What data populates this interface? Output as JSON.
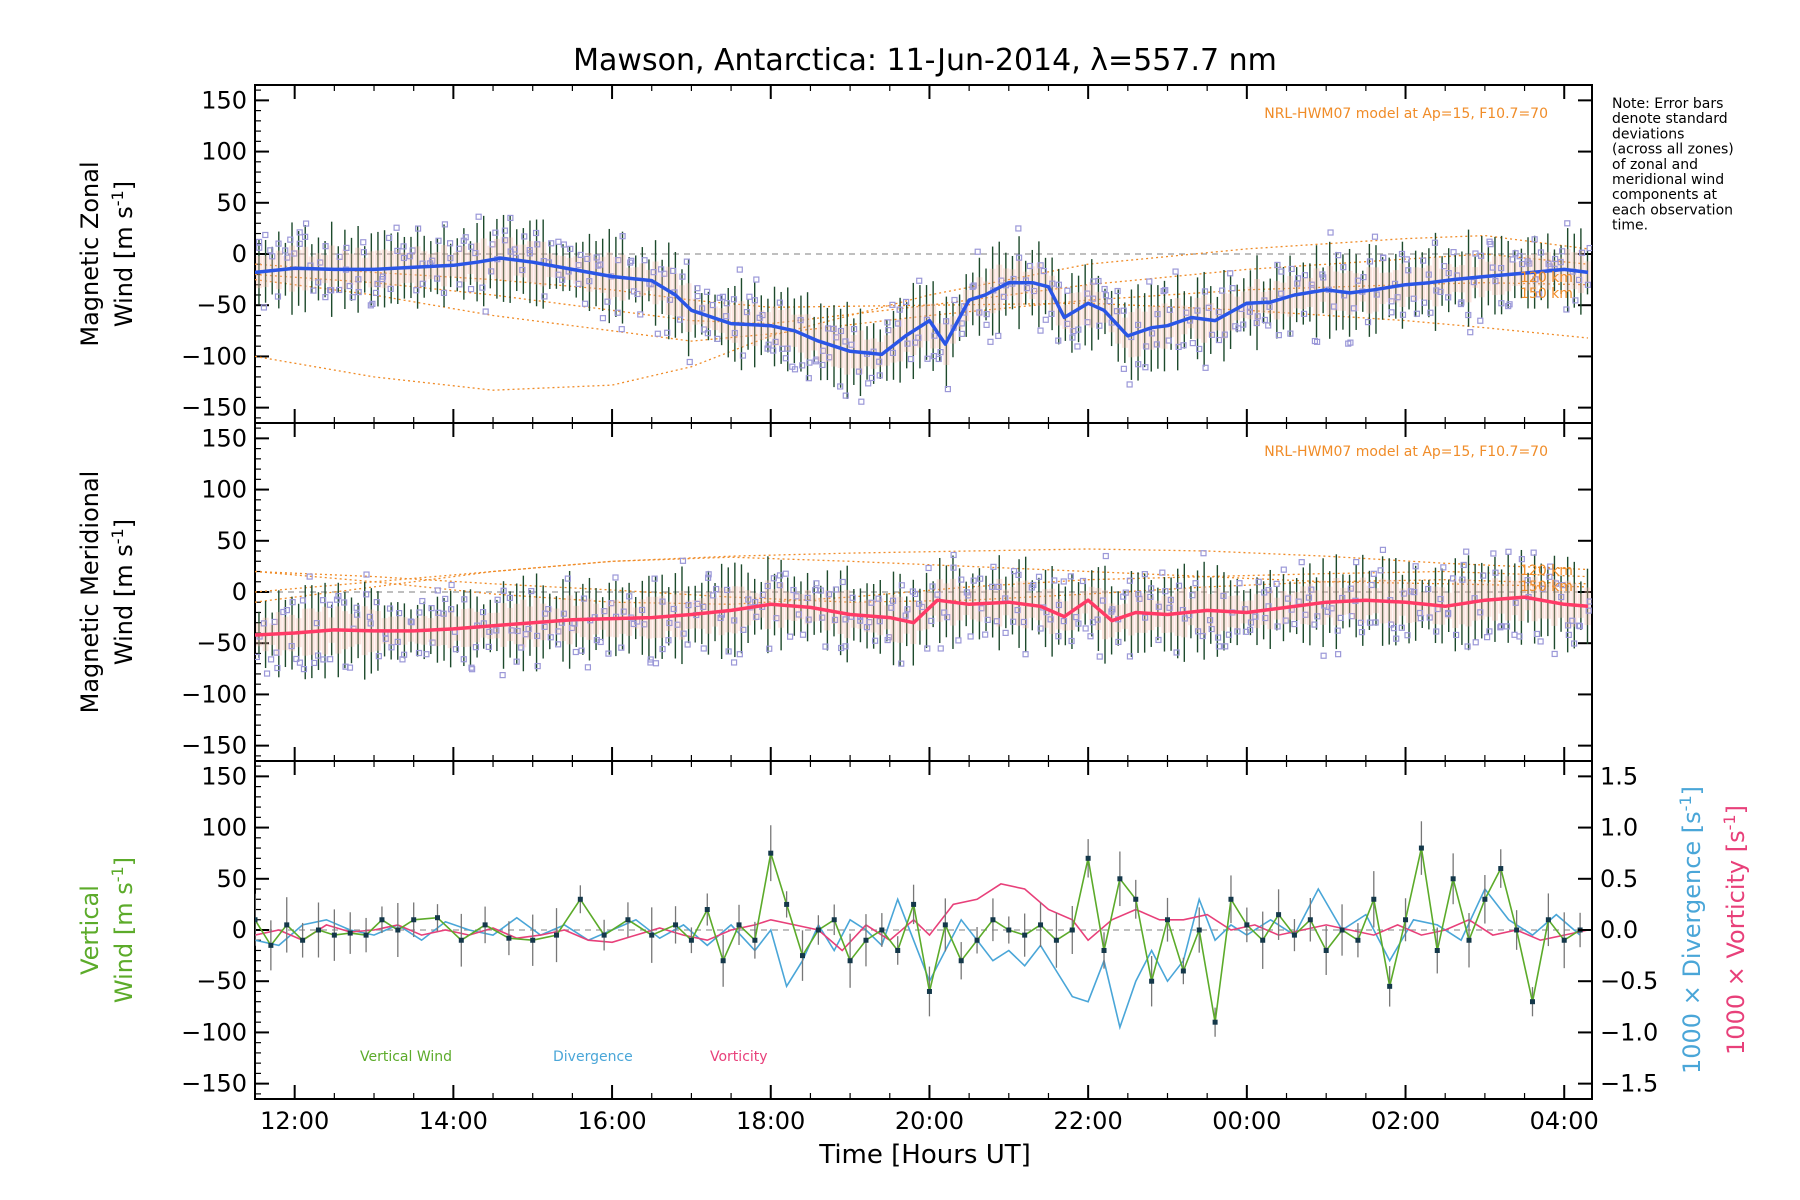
{
  "title": "Mawson, Antarctica: 11-Jun-2014, λ=557.7 nm",
  "note_lines": [
    "Note: Error bars",
    "denote standard",
    "deviations",
    "(across all zones)",
    "of zonal and",
    "meridional wind",
    "components at",
    "each observation",
    "time."
  ],
  "colors": {
    "zonal": "#2a55e6",
    "meridional": "#ff3a66",
    "vertical": "#5cab2a",
    "divergence": "#4aa6d8",
    "vorticity": "#e8407a",
    "model": "#f08c28",
    "scatter": "#9b98d8",
    "error_bar": "#1d4a2c",
    "zero_line": "#999999"
  },
  "chart_data": [
    {
      "type": "line",
      "panel": "zonal",
      "ylabel_line1": "Magnetic Zonal",
      "ylabel_line2": "Wind [m s",
      "ylabel_sup": "-1",
      "ylabel_close": "]",
      "ylim": [
        -165,
        165
      ],
      "yticks": [
        -150,
        -100,
        -50,
        0,
        50,
        100,
        150
      ],
      "model_label": "NRL-HWM07 model at Ap=15, F10.7=70",
      "model_curve_labels": [
        "120 km",
        "150 km"
      ],
      "series": [
        {
          "x": [
            11.5,
            12.0,
            12.5,
            13.0,
            13.5,
            14.0,
            14.3,
            14.6,
            15.0,
            15.5,
            16.0,
            16.5,
            16.8,
            17.0,
            17.5,
            18.0,
            18.3,
            18.6,
            19.0,
            19.4,
            19.7,
            20.0,
            20.2,
            20.5,
            20.7,
            21.0,
            21.3,
            21.5,
            21.7,
            22.0,
            22.2,
            22.5,
            22.8,
            23.0,
            23.3,
            23.6,
            24.0,
            24.3,
            24.6,
            25.0,
            25.3,
            25.6,
            26.0,
            26.3,
            26.6,
            27.0,
            27.3,
            27.6,
            28.0,
            28.3
          ],
          "y": [
            -18,
            -14,
            -15,
            -15,
            -13,
            -11,
            -8,
            -4,
            -8,
            -15,
            -22,
            -26,
            -40,
            -55,
            -68,
            -70,
            -75,
            -85,
            -95,
            -98,
            -80,
            -65,
            -88,
            -45,
            -40,
            -28,
            -28,
            -32,
            -62,
            -48,
            -55,
            -80,
            -72,
            -70,
            -62,
            -65,
            -48,
            -47,
            -40,
            -35,
            -38,
            -35,
            -30,
            -28,
            -25,
            -22,
            -20,
            -18,
            -15,
            -18
          ]
        }
      ],
      "model_curves": [
        {
          "x": [
            11.5,
            13.0,
            14.5,
            16.0,
            17.0,
            18.0,
            20.0,
            22.0,
            24.0,
            26.0,
            27.0,
            28.3
          ],
          "y": [
            -20,
            -28,
            -40,
            -55,
            -65,
            -68,
            -50,
            -30,
            -15,
            -5,
            0,
            -10
          ]
        },
        {
          "x": [
            11.5,
            13.0,
            14.5,
            16.0,
            17.0,
            18.0,
            20.0,
            22.0,
            24.0,
            26.0,
            27.0,
            28.3
          ],
          "y": [
            -25,
            -40,
            -60,
            -75,
            -85,
            -78,
            -60,
            -45,
            -35,
            -30,
            -28,
            -30
          ]
        },
        {
          "x": [
            11.5,
            13.0,
            14.5,
            16.0,
            17.0,
            18.0,
            20.0,
            22.0,
            24.0,
            26.0,
            27.0,
            28.3
          ],
          "y": [
            -100,
            -120,
            -133,
            -128,
            -110,
            -80,
            -40,
            -10,
            5,
            15,
            18,
            5
          ]
        },
        {
          "x": [
            11.5,
            13.0,
            14.5,
            16.0,
            17.0,
            18.0,
            20.0,
            22.0,
            24.0,
            26.0,
            27.0,
            28.3
          ],
          "y": [
            -10,
            -18,
            -25,
            -35,
            -45,
            -52,
            -50,
            -48,
            -55,
            -65,
            -72,
            -82
          ]
        }
      ]
    },
    {
      "type": "line",
      "panel": "meridional",
      "ylabel_line1": "Magnetic Meridional",
      "ylabel_line2": "Wind [m s",
      "ylabel_sup": "-1",
      "ylabel_close": "]",
      "ylim": [
        -165,
        165
      ],
      "yticks": [
        -150,
        -100,
        -50,
        0,
        50,
        100,
        150
      ],
      "model_label": "NRL-HWM07 model at Ap=15, F10.7=70",
      "model_curve_labels": [
        "120 km",
        "150 km"
      ],
      "series": [
        {
          "x": [
            11.5,
            12.0,
            12.5,
            13.0,
            13.5,
            14.0,
            14.5,
            15.0,
            15.5,
            16.0,
            16.5,
            17.0,
            17.5,
            18.0,
            18.5,
            19.0,
            19.5,
            19.8,
            20.1,
            20.5,
            21.0,
            21.4,
            21.7,
            22.0,
            22.3,
            22.6,
            23.0,
            23.5,
            24.0,
            24.5,
            25.0,
            25.5,
            26.0,
            26.5,
            27.0,
            27.5,
            28.0,
            28.3
          ],
          "y": [
            -42,
            -40,
            -37,
            -38,
            -38,
            -36,
            -33,
            -30,
            -27,
            -26,
            -25,
            -22,
            -18,
            -12,
            -15,
            -22,
            -25,
            -30,
            -8,
            -12,
            -10,
            -14,
            -24,
            -8,
            -28,
            -20,
            -22,
            -18,
            -20,
            -15,
            -10,
            -8,
            -10,
            -14,
            -8,
            -5,
            -12,
            -14
          ]
        }
      ],
      "model_curves": [
        {
          "x": [
            11.5,
            13.0,
            14.5,
            16.0,
            17.5,
            19.0,
            20.5,
            22.0,
            23.5,
            25.0,
            26.5,
            28.3
          ],
          "y": [
            20,
            10,
            -2,
            -10,
            -12,
            -5,
            5,
            12,
            15,
            18,
            20,
            15
          ]
        },
        {
          "x": [
            11.5,
            13.0,
            14.5,
            16.0,
            17.5,
            19.0,
            20.5,
            22.0,
            23.5,
            25.0,
            26.5,
            28.3
          ],
          "y": [
            -10,
            5,
            20,
            30,
            34,
            30,
            25,
            20,
            15,
            10,
            8,
            5
          ]
        },
        {
          "x": [
            11.5,
            13.0,
            14.5,
            16.0,
            17.5,
            19.0,
            20.5,
            22.0,
            23.5,
            25.0,
            26.5,
            28.3
          ],
          "y": [
            0,
            10,
            20,
            30,
            35,
            38,
            40,
            42,
            40,
            35,
            28,
            22
          ]
        },
        {
          "x": [
            11.5,
            13.0,
            14.5,
            16.0,
            17.5,
            19.0,
            20.5,
            22.0,
            23.5,
            25.0,
            26.5,
            28.3
          ],
          "y": [
            20,
            15,
            8,
            2,
            -5,
            -10,
            -8,
            -2,
            5,
            10,
            12,
            8
          ]
        }
      ]
    },
    {
      "type": "line",
      "panel": "vertical",
      "ylabel_line1": "Vertical",
      "ylabel_line2": "Wind [m s",
      "ylabel_sup": "-1",
      "ylabel_close": "]",
      "ylim": [
        -165,
        165
      ],
      "yticks": [
        -150,
        -100,
        -50,
        0,
        50,
        100,
        150
      ],
      "y2label_div": "1000 × Divergence [s",
      "y2label_vor": "1000 × Vorticity [s",
      "y2label_sup": "-1",
      "y2label_close": "]",
      "y2lim": [
        -1.65,
        1.65
      ],
      "y2ticks": [
        -1.5,
        -1.0,
        -0.5,
        0.0,
        0.5,
        1.0,
        1.5
      ],
      "legend": [
        "Vertical Wind",
        "Divergence",
        "Vorticity"
      ],
      "series": [
        {
          "name": "Vertical Wind",
          "x": [
            11.5,
            11.7,
            11.9,
            12.1,
            12.3,
            12.5,
            12.7,
            12.9,
            13.1,
            13.3,
            13.5,
            13.8,
            14.1,
            14.4,
            14.7,
            15.0,
            15.3,
            15.6,
            15.9,
            16.2,
            16.5,
            16.8,
            17.0,
            17.2,
            17.4,
            17.6,
            17.8,
            18.0,
            18.2,
            18.4,
            18.6,
            18.8,
            19.0,
            19.2,
            19.4,
            19.6,
            19.8,
            20.0,
            20.2,
            20.4,
            20.6,
            20.8,
            21.0,
            21.2,
            21.4,
            21.6,
            21.8,
            22.0,
            22.2,
            22.4,
            22.6,
            22.8,
            23.0,
            23.2,
            23.4,
            23.6,
            23.8,
            24.0,
            24.2,
            24.4,
            24.6,
            24.8,
            25.0,
            25.2,
            25.4,
            25.6,
            25.8,
            26.0,
            26.2,
            26.4,
            26.6,
            26.8,
            27.0,
            27.2,
            27.4,
            27.6,
            27.8,
            28.0,
            28.2
          ],
          "y": [
            10,
            -15,
            5,
            -10,
            0,
            -5,
            -3,
            -5,
            10,
            0,
            10,
            12,
            -10,
            5,
            -8,
            -10,
            -5,
            30,
            -5,
            10,
            -5,
            5,
            -10,
            20,
            -30,
            5,
            -10,
            75,
            25,
            -25,
            0,
            10,
            -30,
            -10,
            0,
            -20,
            25,
            -60,
            5,
            -30,
            -10,
            10,
            0,
            -5,
            5,
            -10,
            0,
            70,
            -20,
            50,
            30,
            -50,
            10,
            -40,
            0,
            -90,
            30,
            5,
            -10,
            15,
            -5,
            10,
            -20,
            0,
            -10,
            30,
            -55,
            10,
            80,
            -20,
            50,
            -10,
            30,
            60,
            0,
            -70,
            10,
            -10,
            0
          ]
        },
        {
          "name": "Divergence",
          "x": [
            11.5,
            11.8,
            12.1,
            12.4,
            12.7,
            13.0,
            13.3,
            13.6,
            13.9,
            14.2,
            14.5,
            14.8,
            15.1,
            15.4,
            15.7,
            16.0,
            16.3,
            16.6,
            16.9,
            17.2,
            17.5,
            17.8,
            18.0,
            18.2,
            18.4,
            18.6,
            18.8,
            19.0,
            19.2,
            19.4,
            19.6,
            19.8,
            20.0,
            20.2,
            20.4,
            20.6,
            20.8,
            21.0,
            21.2,
            21.4,
            21.6,
            21.8,
            22.0,
            22.2,
            22.4,
            22.6,
            22.8,
            23.0,
            23.2,
            23.4,
            23.6,
            23.8,
            24.0,
            24.3,
            24.6,
            24.9,
            25.2,
            25.5,
            25.8,
            26.1,
            26.4,
            26.7,
            27.0,
            27.3,
            27.6,
            27.9,
            28.2
          ],
          "y": [
            -0.1,
            -0.15,
            0.05,
            0.1,
            0.0,
            -0.05,
            0.05,
            -0.1,
            0.08,
            0.0,
            -0.05,
            0.12,
            -0.05,
            0.05,
            -0.1,
            0.0,
            0.1,
            -0.08,
            0.05,
            -0.15,
            0.05,
            -0.2,
            0.0,
            -0.55,
            -0.3,
            0.05,
            -0.2,
            0.1,
            0.0,
            -0.15,
            0.3,
            -0.1,
            -0.5,
            -0.2,
            0.1,
            -0.1,
            -0.3,
            -0.2,
            -0.35,
            -0.15,
            -0.4,
            -0.65,
            -0.7,
            -0.3,
            -0.95,
            -0.5,
            -0.2,
            -0.5,
            -0.3,
            0.3,
            -0.1,
            0.05,
            -0.05,
            0.1,
            -0.05,
            0.4,
            0.0,
            0.15,
            -0.3,
            0.1,
            0.05,
            -0.1,
            0.4,
            0.1,
            -0.05,
            0.15,
            -0.05
          ]
        },
        {
          "name": "Vorticity",
          "x": [
            11.5,
            11.8,
            12.1,
            12.4,
            12.7,
            13.0,
            13.3,
            13.6,
            13.9,
            14.2,
            14.5,
            14.8,
            15.1,
            15.4,
            15.7,
            16.0,
            16.3,
            16.6,
            16.9,
            17.2,
            17.5,
            17.8,
            18.0,
            18.3,
            18.6,
            18.9,
            19.2,
            19.5,
            19.8,
            20.0,
            20.3,
            20.6,
            20.9,
            21.2,
            21.5,
            21.8,
            22.0,
            22.3,
            22.6,
            22.9,
            23.2,
            23.5,
            23.8,
            24.1,
            24.4,
            24.7,
            25.0,
            25.3,
            25.6,
            25.9,
            26.2,
            26.5,
            26.8,
            27.1,
            27.4,
            27.7,
            28.0,
            28.3
          ],
          "y": [
            -0.05,
            0.0,
            -0.1,
            0.05,
            -0.02,
            0.0,
            0.05,
            -0.05,
            0.0,
            -0.05,
            0.02,
            -0.08,
            -0.05,
            0.0,
            -0.1,
            -0.12,
            -0.05,
            0.02,
            -0.05,
            -0.1,
            0.0,
            0.05,
            0.1,
            0.05,
            0.0,
            -0.2,
            0.05,
            -0.1,
            0.1,
            -0.05,
            0.25,
            0.3,
            0.45,
            0.4,
            0.2,
            0.1,
            -0.1,
            0.1,
            0.2,
            0.1,
            0.1,
            0.15,
            0.0,
            0.05,
            -0.05,
            0.0,
            0.05,
            0.0,
            -0.05,
            0.05,
            -0.05,
            0.0,
            0.1,
            -0.05,
            0.0,
            -0.1,
            -0.05,
            0.0
          ]
        }
      ]
    }
  ],
  "x_axis": {
    "xlim": [
      11.5,
      28.35
    ],
    "tick_values": [
      12,
      14,
      16,
      18,
      20,
      22,
      24,
      26,
      28
    ],
    "tick_labels": [
      "12:00",
      "14:00",
      "16:00",
      "18:00",
      "20:00",
      "22:00",
      "00:00",
      "02:00",
      "04:00"
    ],
    "xlabel": "Time [Hours UT]"
  }
}
